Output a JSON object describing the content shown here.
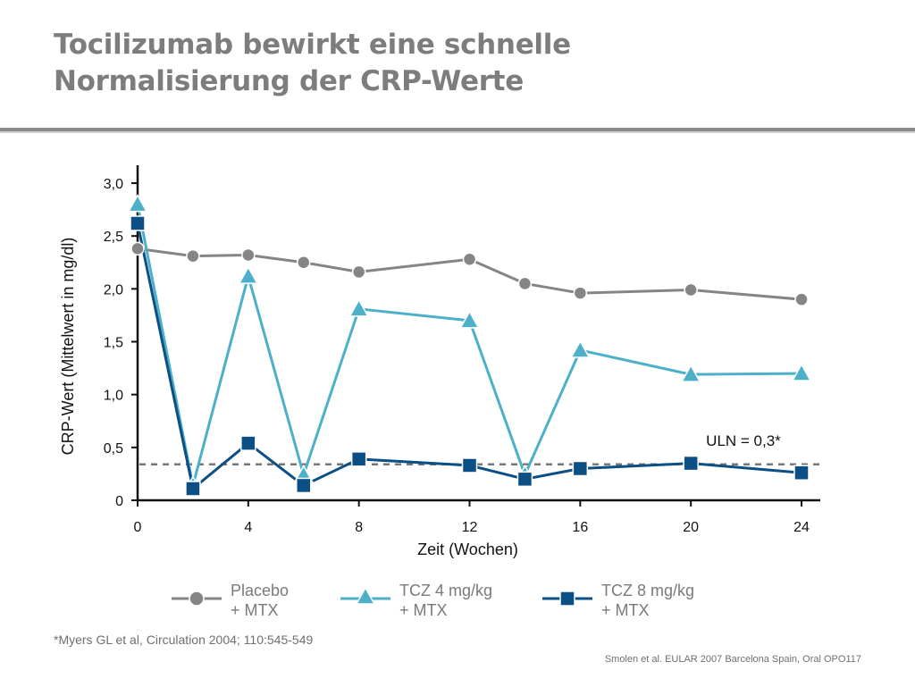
{
  "title": {
    "line1": "Tocilizumab bewirkt eine schnelle",
    "line2": "Normalisierung der CRP-Werte"
  },
  "colors": {
    "placebo": "#858585",
    "tcz4": "#4bb0c8",
    "tcz8": "#0b4f85",
    "threshold": "#777777",
    "title": "#7d7d7d"
  },
  "chart_data": {
    "type": "line",
    "xlabel": "Zeit (Wochen)",
    "ylabel": "CRP-Wert (Mittelwert in mg/dl)",
    "xlim": [
      0,
      24
    ],
    "ylim": [
      0,
      3.0
    ],
    "xticks": [
      0,
      4,
      8,
      12,
      16,
      20,
      24
    ],
    "xtick_labels": [
      "0",
      "4",
      "8",
      "12",
      "16",
      "20",
      "24"
    ],
    "yticks": [
      0,
      0.5,
      1.0,
      1.5,
      2.0,
      2.5,
      3.0
    ],
    "ytick_labels": [
      "0",
      "0,5",
      "1,0",
      "1,5",
      "2,0",
      "2,5",
      "3,0"
    ],
    "grid": false,
    "legend_position": "bottom",
    "series": [
      {
        "key": "placebo",
        "marker": "circle",
        "x": [
          0,
          2,
          4,
          6,
          8,
          12,
          14,
          16,
          20,
          24
        ],
        "values": [
          2.38,
          2.31,
          2.32,
          2.25,
          2.16,
          2.28,
          2.05,
          1.96,
          1.99,
          1.9
        ]
      },
      {
        "key": "tcz4",
        "marker": "triangle",
        "x": [
          0,
          2,
          4,
          6,
          8,
          12,
          14,
          16,
          20,
          24
        ],
        "values": [
          2.8,
          0.14,
          2.12,
          0.24,
          1.81,
          1.7,
          0.24,
          1.42,
          1.19,
          1.2
        ]
      },
      {
        "key": "tcz8",
        "marker": "square",
        "x": [
          0,
          2,
          4,
          6,
          8,
          12,
          14,
          16,
          20,
          24
        ],
        "values": [
          2.62,
          0.11,
          0.54,
          0.14,
          0.39,
          0.33,
          0.2,
          0.3,
          0.35,
          0.26
        ]
      }
    ],
    "reference_line": {
      "value": 0.34,
      "label": "ULN = 0,3*"
    }
  },
  "legend": [
    {
      "key": "placebo",
      "line1": "Placebo",
      "line2": "+ MTX"
    },
    {
      "key": "tcz4",
      "line1": "TCZ 4 mg/kg",
      "line2": "+ MTX"
    },
    {
      "key": "tcz8",
      "line1": "TCZ 8 mg/kg",
      "line2": "+ MTX"
    }
  ],
  "footnote": "*Myers GL et al, Circulation 2004; 110:545-549",
  "source": "Smolen et al. EULAR 2007 Barcelona Spain, Oral OPO117"
}
